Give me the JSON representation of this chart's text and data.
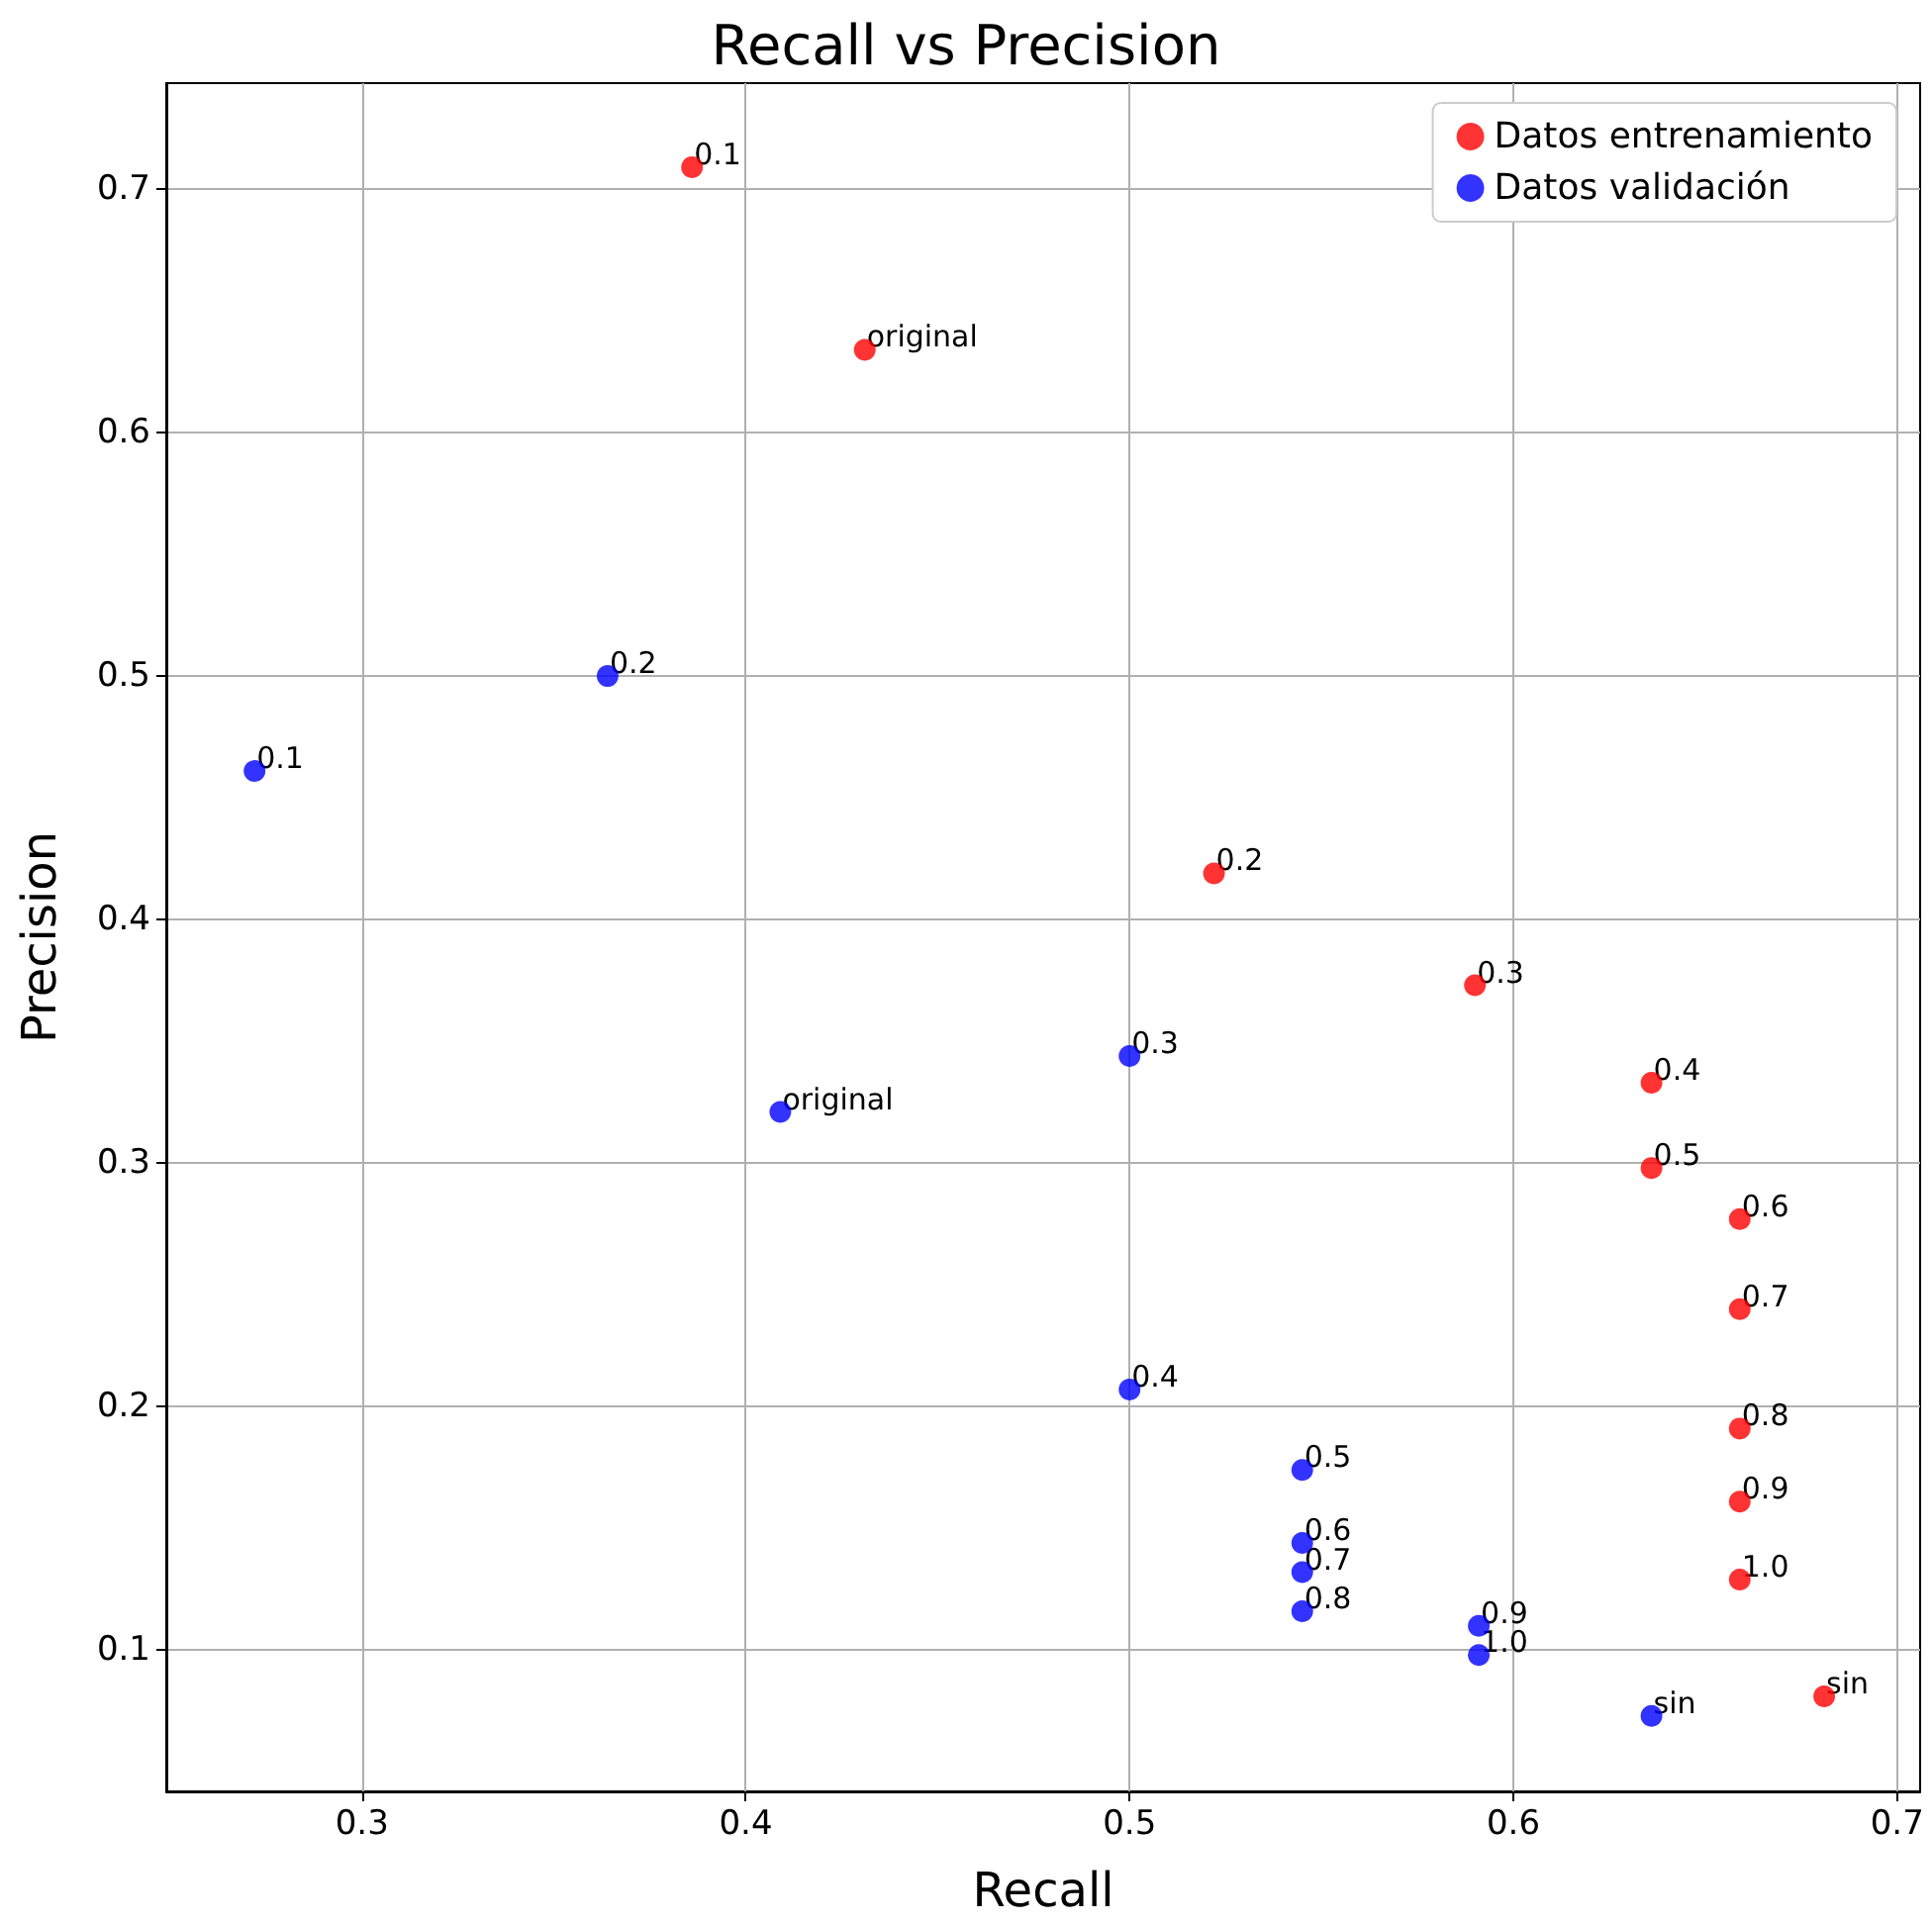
{
  "chart_data": {
    "type": "scatter",
    "title": "Recall vs Precision",
    "xlabel": "Recall",
    "ylabel": "Precision",
    "xlim": [
      0.249,
      0.706
    ],
    "ylim": [
      0.042,
      0.7435
    ],
    "xticks": [
      0.3,
      0.4,
      0.5,
      0.6,
      0.7
    ],
    "yticks": [
      0.1,
      0.2,
      0.3,
      0.4,
      0.5,
      0.6,
      0.7
    ],
    "grid": true,
    "legend": "top right",
    "marker": "circle",
    "series": [
      {
        "name": "Datos entrenamiento",
        "color": "#ff0000",
        "x": [
          0.386,
          0.431,
          0.522,
          0.59,
          0.636,
          0.636,
          0.659,
          0.659,
          0.659,
          0.659,
          0.659,
          0.681
        ],
        "values": [
          0.709,
          0.634,
          0.419,
          0.373,
          0.333,
          0.298,
          0.277,
          0.24,
          0.191,
          0.161,
          0.129,
          0.081
        ]
      },
      {
        "name": "Datos validación",
        "color": "#0000ff",
        "x": [
          0.272,
          0.364,
          0.409,
          0.5,
          0.5,
          0.545,
          0.545,
          0.545,
          0.545,
          0.591,
          0.591,
          0.636
        ],
        "values": [
          0.461,
          0.5,
          0.321,
          0.344,
          0.207,
          0.174,
          0.144,
          0.132,
          0.116,
          0.11,
          0.098,
          0.073
        ]
      }
    ],
    "annotations": [
      {
        "text": "0.1",
        "x": 0.386,
        "y": 0.709
      },
      {
        "text": "original",
        "x": 0.431,
        "y": 0.634
      },
      {
        "text": "0.2",
        "x": 0.522,
        "y": 0.419
      },
      {
        "text": "0.3",
        "x": 0.59,
        "y": 0.373
      },
      {
        "text": "0.4",
        "x": 0.636,
        "y": 0.333
      },
      {
        "text": "0.5",
        "x": 0.636,
        "y": 0.298
      },
      {
        "text": "0.6",
        "x": 0.659,
        "y": 0.277
      },
      {
        "text": "0.7",
        "x": 0.659,
        "y": 0.24
      },
      {
        "text": "0.8",
        "x": 0.659,
        "y": 0.191
      },
      {
        "text": "0.9",
        "x": 0.659,
        "y": 0.161
      },
      {
        "text": "1.0",
        "x": 0.659,
        "y": 0.129
      },
      {
        "text": "sin",
        "x": 0.681,
        "y": 0.081
      },
      {
        "text": "0.1",
        "x": 0.272,
        "y": 0.461
      },
      {
        "text": "0.2",
        "x": 0.364,
        "y": 0.5
      },
      {
        "text": "original",
        "x": 0.409,
        "y": 0.321
      },
      {
        "text": "0.3",
        "x": 0.5,
        "y": 0.344
      },
      {
        "text": "0.4",
        "x": 0.5,
        "y": 0.207
      },
      {
        "text": "0.5",
        "x": 0.545,
        "y": 0.174
      },
      {
        "text": "0.6",
        "x": 0.545,
        "y": 0.144
      },
      {
        "text": "0.7",
        "x": 0.545,
        "y": 0.132
      },
      {
        "text": "0.8",
        "x": 0.545,
        "y": 0.116
      },
      {
        "text": "0.9",
        "x": 0.591,
        "y": 0.11
      },
      {
        "text": "1.0",
        "x": 0.591,
        "y": 0.098
      },
      {
        "text": "sin",
        "x": 0.636,
        "y": 0.073
      }
    ]
  }
}
